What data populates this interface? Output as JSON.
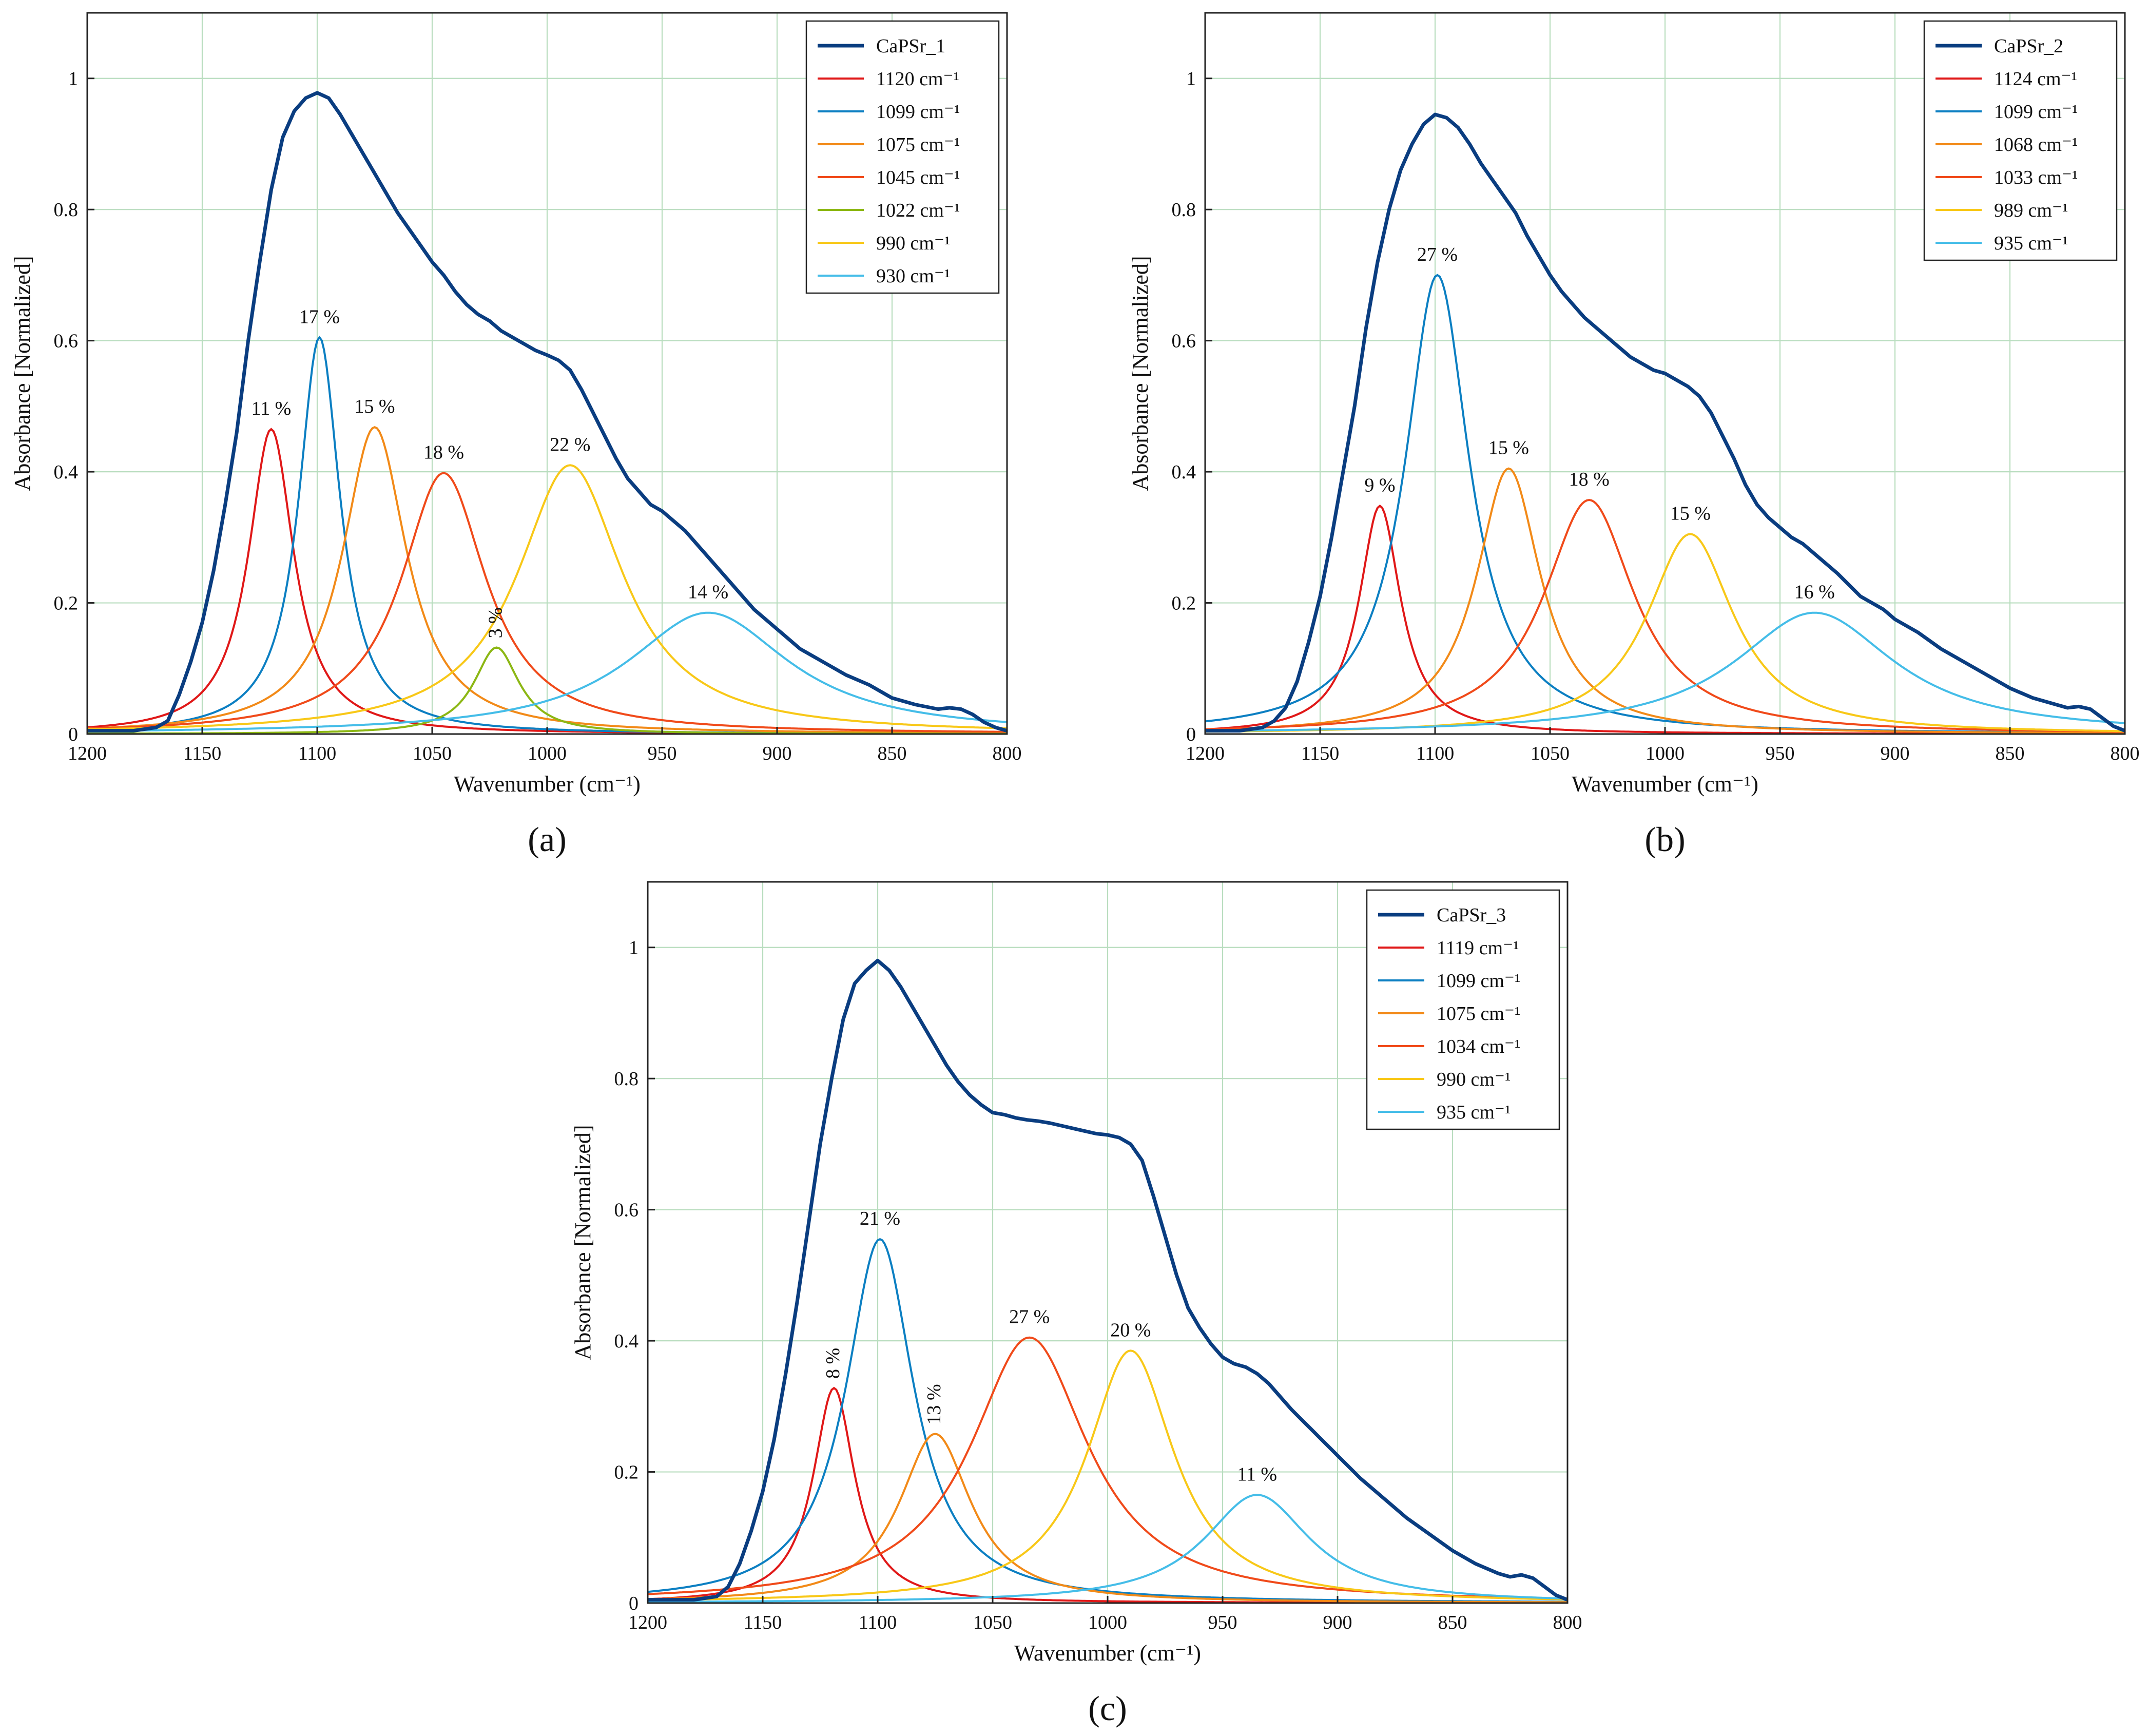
{
  "figure": {
    "curve_model": "lorentzian",
    "colors": {
      "grid": "#b9ddbf",
      "measured": "#0a3d80",
      "red": "#e01818",
      "blue": "#0c7fc2",
      "orange": "#f28a18",
      "redorange": "#f04a1a",
      "green": "#8cb714",
      "yellow": "#f8c818",
      "cyan": "#45bde8"
    }
  },
  "chart_data": [
    {
      "type": "line",
      "panel_label_text": "(a)",
      "panel_label_letter": "a",
      "xlabel": "Wavenumber (cm⁻¹)",
      "ylabel": "Absorbance [Normalized]",
      "xlim": [
        1200,
        800
      ],
      "ylim": [
        0,
        1.1
      ],
      "xticks": [
        1200,
        1150,
        1100,
        1050,
        1000,
        950,
        900,
        850,
        800
      ],
      "yticks": [
        0,
        0.2,
        0.4,
        0.6,
        0.8,
        1
      ],
      "ytick_labels": [
        "0",
        "0.2",
        "0.4",
        "0.6",
        "0.8",
        "1"
      ],
      "grid": true,
      "legend_position": "top-right",
      "measured": {
        "name": "CaPSr_1",
        "color": "#0a3d80",
        "x": [
          1200,
          1180,
          1170,
          1165,
          1160,
          1155,
          1150,
          1145,
          1140,
          1135,
          1130,
          1125,
          1120,
          1115,
          1110,
          1105,
          1100,
          1095,
          1090,
          1085,
          1080,
          1075,
          1070,
          1065,
          1060,
          1055,
          1050,
          1045,
          1040,
          1035,
          1030,
          1025,
          1020,
          1015,
          1010,
          1005,
          1000,
          995,
          990,
          985,
          980,
          975,
          970,
          965,
          960,
          955,
          950,
          945,
          940,
          935,
          930,
          920,
          910,
          900,
          890,
          880,
          870,
          860,
          850,
          840,
          830,
          825,
          820,
          815,
          810,
          805,
          800
        ],
        "y": [
          0.005,
          0.005,
          0.01,
          0.02,
          0.06,
          0.11,
          0.17,
          0.25,
          0.35,
          0.46,
          0.6,
          0.72,
          0.83,
          0.91,
          0.95,
          0.97,
          0.978,
          0.97,
          0.945,
          0.915,
          0.885,
          0.855,
          0.825,
          0.795,
          0.77,
          0.745,
          0.72,
          0.7,
          0.675,
          0.655,
          0.64,
          0.63,
          0.615,
          0.605,
          0.595,
          0.585,
          0.578,
          0.57,
          0.555,
          0.525,
          0.49,
          0.455,
          0.42,
          0.39,
          0.37,
          0.35,
          0.34,
          0.325,
          0.31,
          0.29,
          0.27,
          0.23,
          0.19,
          0.16,
          0.13,
          0.11,
          0.09,
          0.075,
          0.055,
          0.045,
          0.038,
          0.04,
          0.038,
          0.03,
          0.018,
          0.01,
          0.005
        ]
      },
      "components": [
        {
          "label": "1120 cm⁻¹",
          "center": 1120,
          "amplitude": 0.465,
          "fwhm": 24,
          "color": "#e01818",
          "percent_label": "11 %",
          "label_rotated": false
        },
        {
          "label": "1099 cm⁻¹",
          "center": 1099,
          "amplitude": 0.605,
          "fwhm": 22,
          "color": "#0c7fc2",
          "percent_label": "17 %",
          "label_rotated": false
        },
        {
          "label": "1075 cm⁻¹",
          "center": 1075,
          "amplitude": 0.468,
          "fwhm": 34,
          "color": "#f28a18",
          "percent_label": "15 %",
          "label_rotated": false
        },
        {
          "label": "1045 cm⁻¹",
          "center": 1045,
          "amplitude": 0.398,
          "fwhm": 45,
          "color": "#f04a1a",
          "percent_label": "18 %",
          "label_rotated": false
        },
        {
          "label": "1022 cm⁻¹",
          "center": 1022,
          "amplitude": 0.132,
          "fwhm": 24,
          "color": "#8cb714",
          "percent_label": "3 %",
          "label_rotated": true
        },
        {
          "label": "990 cm⁻¹",
          "center": 990,
          "amplitude": 0.41,
          "fwhm": 56,
          "color": "#f8c818",
          "percent_label": "22 %",
          "label_rotated": false
        },
        {
          "label": "930 cm⁻¹",
          "center": 930,
          "amplitude": 0.185,
          "fwhm": 86,
          "color": "#45bde8",
          "percent_label": "14 %",
          "label_rotated": false
        }
      ]
    },
    {
      "type": "line",
      "panel_label_text": "(b)",
      "panel_label_letter": "b",
      "xlabel": "Wavenumber (cm⁻¹)",
      "ylabel": "Absorbance [Normalized]",
      "xlim": [
        1200,
        800
      ],
      "ylim": [
        0,
        1.1
      ],
      "xticks": [
        1200,
        1150,
        1100,
        1050,
        1000,
        950,
        900,
        850,
        800
      ],
      "yticks": [
        0,
        0.2,
        0.4,
        0.6,
        0.8,
        1
      ],
      "ytick_labels": [
        "0",
        "0.2",
        "0.4",
        "0.6",
        "0.8",
        "1"
      ],
      "grid": true,
      "legend_position": "top-right",
      "measured": {
        "name": "CaPSr_2",
        "color": "#0a3d80",
        "x": [
          1200,
          1185,
          1175,
          1170,
          1165,
          1160,
          1155,
          1150,
          1145,
          1140,
          1135,
          1130,
          1125,
          1120,
          1115,
          1110,
          1105,
          1100,
          1095,
          1090,
          1085,
          1080,
          1075,
          1070,
          1065,
          1060,
          1055,
          1050,
          1045,
          1040,
          1035,
          1030,
          1025,
          1020,
          1015,
          1010,
          1005,
          1000,
          995,
          990,
          985,
          980,
          975,
          970,
          965,
          960,
          955,
          950,
          945,
          940,
          935,
          925,
          915,
          905,
          900,
          890,
          880,
          870,
          860,
          850,
          840,
          830,
          825,
          820,
          815,
          810,
          805,
          800
        ],
        "y": [
          0.005,
          0.005,
          0.01,
          0.02,
          0.04,
          0.08,
          0.14,
          0.21,
          0.3,
          0.4,
          0.5,
          0.62,
          0.72,
          0.8,
          0.86,
          0.9,
          0.93,
          0.945,
          0.94,
          0.925,
          0.9,
          0.87,
          0.845,
          0.82,
          0.795,
          0.76,
          0.73,
          0.7,
          0.675,
          0.655,
          0.635,
          0.62,
          0.605,
          0.59,
          0.575,
          0.565,
          0.555,
          0.55,
          0.54,
          0.53,
          0.515,
          0.49,
          0.455,
          0.42,
          0.38,
          0.35,
          0.33,
          0.315,
          0.3,
          0.29,
          0.275,
          0.245,
          0.21,
          0.19,
          0.175,
          0.155,
          0.13,
          0.11,
          0.09,
          0.07,
          0.055,
          0.045,
          0.04,
          0.042,
          0.038,
          0.025,
          0.012,
          0.005
        ]
      },
      "components": [
        {
          "label": "1124 cm⁻¹",
          "center": 1124,
          "amplitude": 0.348,
          "fwhm": 22,
          "color": "#e01818",
          "percent_label": "9 %",
          "label_rotated": false
        },
        {
          "label": "1099 cm⁻¹",
          "center": 1099,
          "amplitude": 0.7,
          "fwhm": 34,
          "color": "#0c7fc2",
          "percent_label": "27 %",
          "label_rotated": false
        },
        {
          "label": "1068 cm⁻¹",
          "center": 1068,
          "amplitude": 0.405,
          "fwhm": 34,
          "color": "#f28a18",
          "percent_label": "15 %",
          "label_rotated": false
        },
        {
          "label": "1033 cm⁻¹",
          "center": 1033,
          "amplitude": 0.357,
          "fwhm": 48,
          "color": "#f04a1a",
          "percent_label": "18 %",
          "label_rotated": false
        },
        {
          "label": "989 cm⁻¹",
          "center": 989,
          "amplitude": 0.305,
          "fwhm": 46,
          "color": "#f8c818",
          "percent_label": "15 %",
          "label_rotated": false
        },
        {
          "label": "935 cm⁻¹",
          "center": 935,
          "amplitude": 0.185,
          "fwhm": 85,
          "color": "#45bde8",
          "percent_label": "16 %",
          "label_rotated": false
        }
      ]
    },
    {
      "type": "line",
      "panel_label_text": "(c)",
      "panel_label_letter": "c",
      "xlabel": "Wavenumber (cm⁻¹)",
      "ylabel": "Absorbance [Normalized]",
      "xlim": [
        1200,
        800
      ],
      "ylim": [
        0,
        1.1
      ],
      "xticks": [
        1200,
        1150,
        1100,
        1050,
        1000,
        950,
        900,
        850,
        800
      ],
      "yticks": [
        0,
        0.2,
        0.4,
        0.6,
        0.8,
        1
      ],
      "ytick_labels": [
        "0",
        "0.2",
        "0.4",
        "0.6",
        "0.8",
        "1"
      ],
      "grid": true,
      "legend_position": "top-right",
      "measured": {
        "name": "CaPSr_3",
        "color": "#0a3d80",
        "x": [
          1200,
          1180,
          1170,
          1165,
          1160,
          1155,
          1150,
          1145,
          1140,
          1135,
          1130,
          1125,
          1120,
          1115,
          1110,
          1105,
          1100,
          1095,
          1090,
          1085,
          1080,
          1075,
          1070,
          1065,
          1060,
          1055,
          1050,
          1045,
          1040,
          1035,
          1030,
          1025,
          1020,
          1015,
          1010,
          1005,
          1000,
          995,
          990,
          985,
          980,
          975,
          970,
          965,
          960,
          955,
          950,
          945,
          940,
          935,
          930,
          920,
          910,
          900,
          890,
          880,
          870,
          860,
          850,
          840,
          830,
          825,
          820,
          815,
          810,
          805,
          800
        ],
        "y": [
          0.005,
          0.005,
          0.01,
          0.025,
          0.06,
          0.11,
          0.17,
          0.25,
          0.35,
          0.46,
          0.58,
          0.7,
          0.8,
          0.89,
          0.945,
          0.965,
          0.98,
          0.965,
          0.94,
          0.91,
          0.88,
          0.85,
          0.82,
          0.795,
          0.775,
          0.76,
          0.748,
          0.745,
          0.74,
          0.737,
          0.735,
          0.732,
          0.728,
          0.724,
          0.72,
          0.716,
          0.714,
          0.71,
          0.7,
          0.675,
          0.62,
          0.56,
          0.5,
          0.45,
          0.42,
          0.395,
          0.375,
          0.365,
          0.36,
          0.35,
          0.335,
          0.295,
          0.26,
          0.225,
          0.19,
          0.16,
          0.13,
          0.105,
          0.08,
          0.06,
          0.045,
          0.04,
          0.043,
          0.038,
          0.025,
          0.012,
          0.005
        ]
      },
      "components": [
        {
          "label": "1119 cm⁻¹",
          "center": 1119,
          "amplitude": 0.328,
          "fwhm": 22,
          "color": "#e01818",
          "percent_label": "8 %",
          "label_rotated": true
        },
        {
          "label": "1099 cm⁻¹",
          "center": 1099,
          "amplitude": 0.555,
          "fwhm": 36,
          "color": "#0c7fc2",
          "percent_label": "21 %",
          "label_rotated": false
        },
        {
          "label": "1075 cm⁻¹",
          "center": 1075,
          "amplitude": 0.258,
          "fwhm": 38,
          "color": "#f28a18",
          "percent_label": "13 %",
          "label_rotated": true
        },
        {
          "label": "1034 cm⁻¹",
          "center": 1034,
          "amplitude": 0.405,
          "fwhm": 62,
          "color": "#f04a1a",
          "percent_label": "27 %",
          "label_rotated": false
        },
        {
          "label": "990 cm⁻¹",
          "center": 990,
          "amplitude": 0.385,
          "fwhm": 46,
          "color": "#f8c818",
          "percent_label": "20 %",
          "label_rotated": false
        },
        {
          "label": "935 cm⁻¹",
          "center": 935,
          "amplitude": 0.165,
          "fwhm": 56,
          "color": "#45bde8",
          "percent_label": "11 %",
          "label_rotated": false
        }
      ]
    }
  ]
}
